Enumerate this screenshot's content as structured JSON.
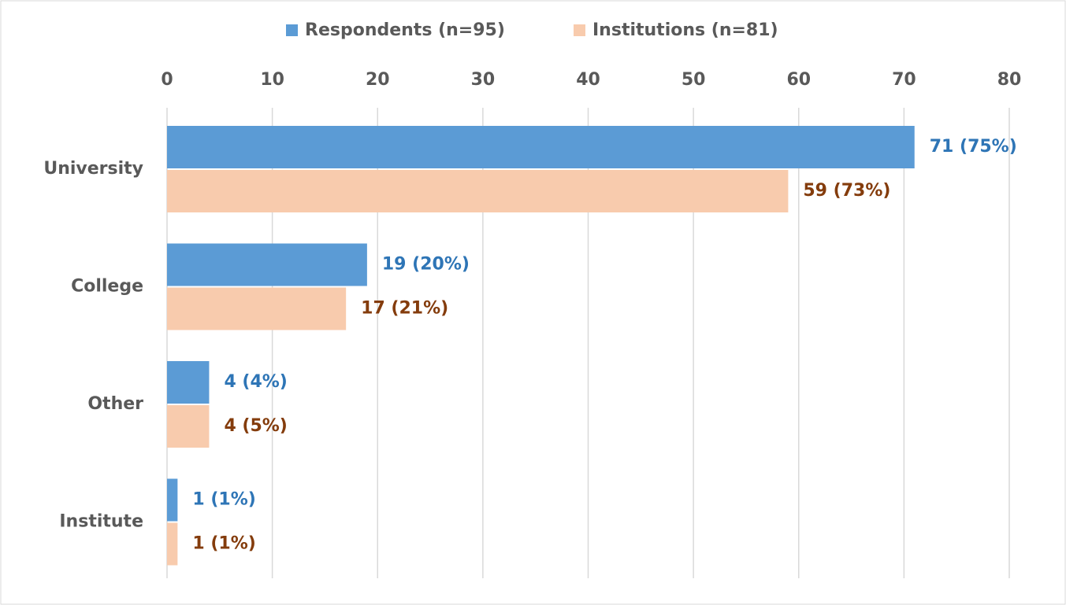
{
  "chart_data": {
    "type": "bar",
    "orientation": "horizontal",
    "categories": [
      "University",
      "College",
      "Other",
      "Institute"
    ],
    "series": [
      {
        "name": "Respondents (n=95)",
        "color": "#5b9bd5",
        "label_color": "#2e75b6",
        "values": [
          71,
          19,
          4,
          1
        ],
        "value_labels": [
          "71 (75%)",
          "19 (20%)",
          "4 (4%)",
          "1 (1%)"
        ]
      },
      {
        "name": "Institutions (n=81)",
        "color": "#f8cbad",
        "label_color": "#843c0c",
        "values": [
          59,
          17,
          4,
          1
        ],
        "value_labels": [
          "59 (73%)",
          "17 (21%)",
          "4 (5%)",
          "1 (1%)"
        ]
      }
    ],
    "xlim": [
      0,
      80
    ],
    "xticks": [
      0,
      10,
      20,
      30,
      40,
      50,
      60,
      70,
      80
    ],
    "grid": true,
    "legend": "top"
  }
}
